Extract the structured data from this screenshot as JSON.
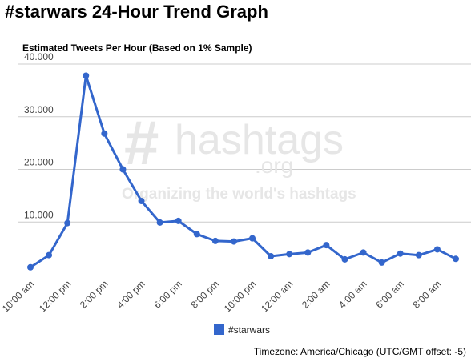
{
  "page": {
    "title": "#starwars 24-Hour Trend Graph",
    "timezone_note": "Timezone: America/Chicago (UTC/GMT offset: -5)"
  },
  "watermark": {
    "logo_hash": "#",
    "logo_word": "hashtags",
    "logo_domain": ".org",
    "tagline": "Organizing the world's hashtags"
  },
  "colors": {
    "series": "#3366cc",
    "grid": "#cccccc",
    "axis_text": "#444444",
    "watermark": "#e6e6e6"
  },
  "chart_data": {
    "type": "line",
    "title": "Estimated Tweets Per Hour (Based on 1% Sample)",
    "xlabel": "",
    "ylabel": "",
    "ylim": [
      0,
      40000
    ],
    "y_ticks": [
      10000,
      20000,
      30000,
      40000
    ],
    "y_tick_labels": [
      "10.000",
      "20.000",
      "30.000",
      "40.000"
    ],
    "x_tick_labels": [
      "10:00 am",
      "12:00 pm",
      "2:00 pm",
      "4:00 pm",
      "6:00 pm",
      "8:00 pm",
      "10:00 pm",
      "12:00 am",
      "2:00 am",
      "4:00 am",
      "6:00 am",
      "8:00 am"
    ],
    "x": [
      "10:00 am",
      "11:00 am",
      "12:00 pm",
      "1:00 pm",
      "2:00 pm",
      "3:00 pm",
      "4:00 pm",
      "5:00 pm",
      "6:00 pm",
      "7:00 pm",
      "8:00 pm",
      "9:00 pm",
      "10:00 pm",
      "11:00 pm",
      "12:00 am",
      "1:00 am",
      "2:00 am",
      "3:00 am",
      "4:00 am",
      "5:00 am",
      "6:00 am",
      "7:00 am",
      "8:00 am",
      "9:00 am"
    ],
    "series": [
      {
        "name": "#starwars",
        "values": [
          1400,
          3700,
          9800,
          37800,
          26800,
          20000,
          14000,
          9900,
          10200,
          7700,
          6400,
          6300,
          6900,
          3500,
          3900,
          4200,
          5600,
          2900,
          4200,
          2300,
          4000,
          3700,
          4800,
          3000
        ]
      }
    ],
    "grid": true,
    "legend_position": "bottom"
  }
}
